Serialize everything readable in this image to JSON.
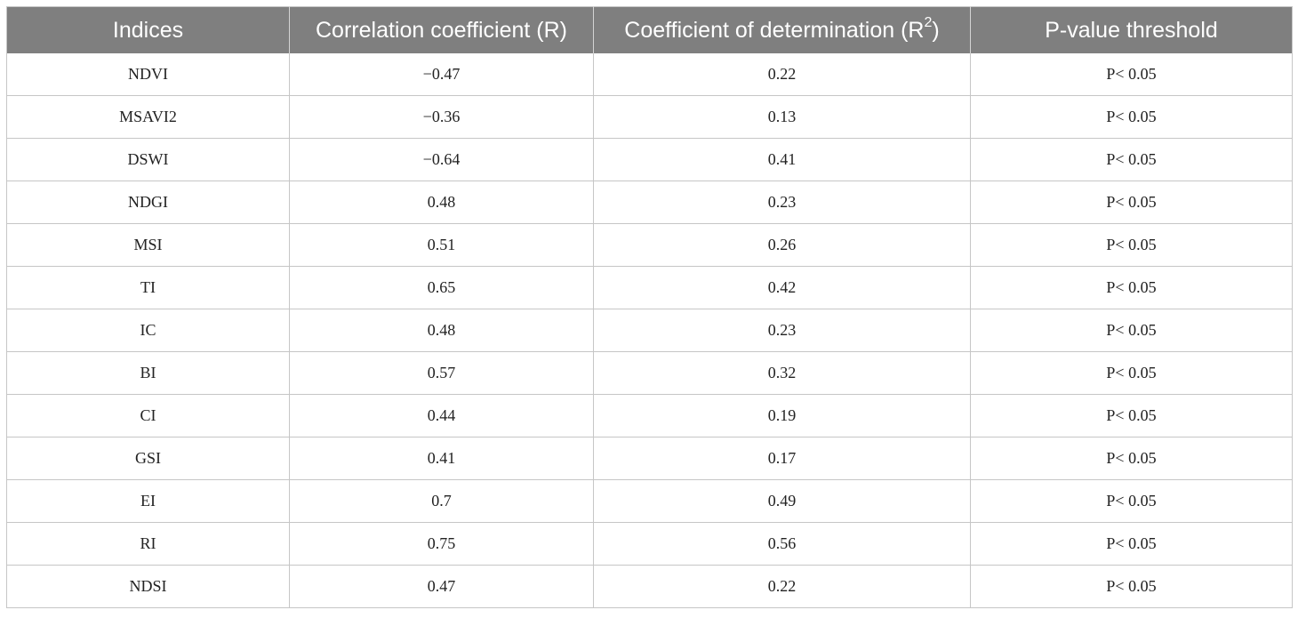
{
  "table": {
    "headers": {
      "indices": "Indices",
      "correlation": "Correlation coefficient (R)",
      "determination_prefix": "Coefficient of determination (R",
      "determination_sup": "2",
      "determination_suffix": ")",
      "pvalue": "P-value threshold"
    },
    "rows": [
      {
        "index": "NDVI",
        "r": "−0.47",
        "r2": "0.22",
        "p": "P< 0.05"
      },
      {
        "index": "MSAVI2",
        "r": "−0.36",
        "r2": "0.13",
        "p": "P< 0.05"
      },
      {
        "index": "DSWI",
        "r": "−0.64",
        "r2": "0.41",
        "p": "P< 0.05"
      },
      {
        "index": "NDGI",
        "r": "0.48",
        "r2": "0.23",
        "p": "P< 0.05"
      },
      {
        "index": "MSI",
        "r": "0.51",
        "r2": "0.26",
        "p": "P< 0.05"
      },
      {
        "index": "TI",
        "r": "0.65",
        "r2": "0.42",
        "p": "P< 0.05"
      },
      {
        "index": "IC",
        "r": "0.48",
        "r2": "0.23",
        "p": "P< 0.05"
      },
      {
        "index": "BI",
        "r": "0.57",
        "r2": "0.32",
        "p": "P< 0.05"
      },
      {
        "index": "CI",
        "r": "0.44",
        "r2": "0.19",
        "p": "P< 0.05"
      },
      {
        "index": "GSI",
        "r": "0.41",
        "r2": "0.17",
        "p": "P< 0.05"
      },
      {
        "index": "EI",
        "r": "0.7",
        "r2": "0.49",
        "p": "P< 0.05"
      },
      {
        "index": "RI",
        "r": "0.75",
        "r2": "0.56",
        "p": "P< 0.05"
      },
      {
        "index": "NDSI",
        "r": "0.47",
        "r2": "0.22",
        "p": "P< 0.05"
      }
    ]
  },
  "colors": {
    "header_background": "#7f7f7f",
    "header_text": "#ffffff",
    "grid_lines": "#c6c6c6"
  }
}
